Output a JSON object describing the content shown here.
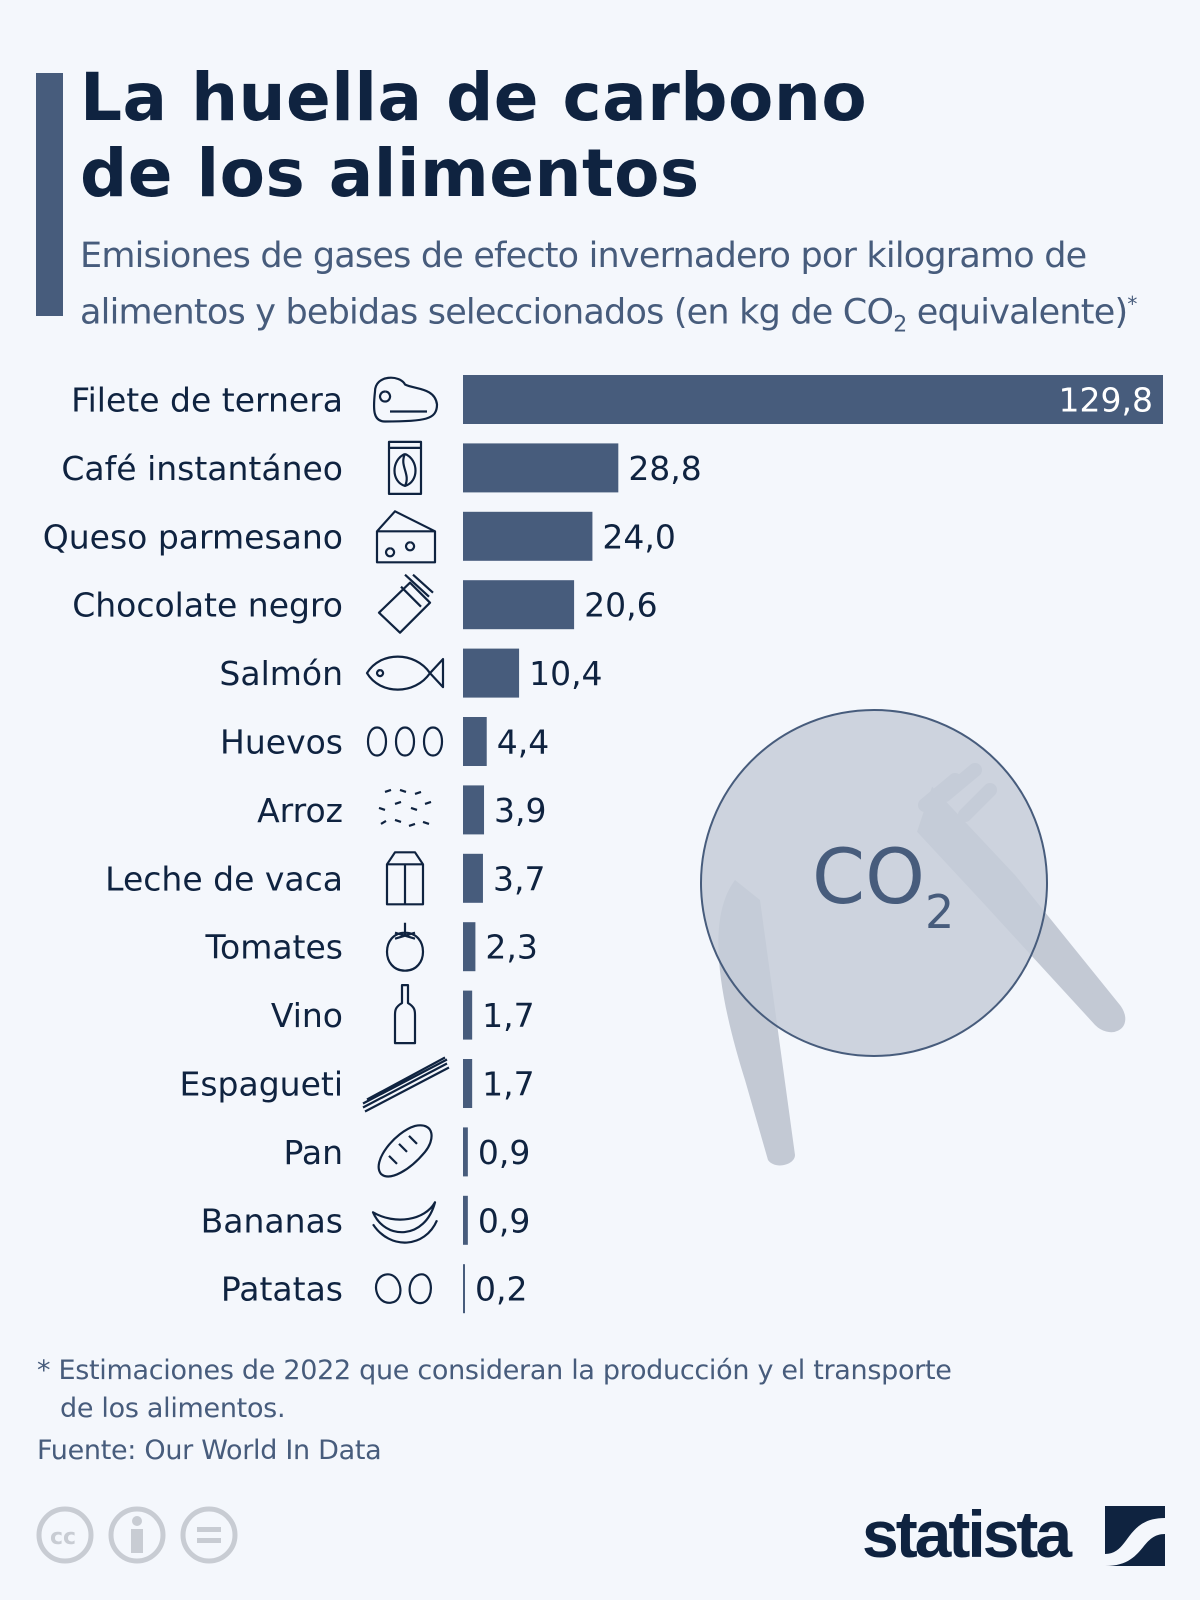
{
  "header": {
    "title_line1": "La huella de carbono",
    "title_line2": "de los alimentos",
    "subtitle_line1": "Emisiones de gases de efecto invernadero por kilogramo de",
    "subtitle_line2_pre": "alimentos y bebidas seleccionados (en kg de CO",
    "subtitle_sub": "2",
    "subtitle_line2_post": " equivalente)",
    "subtitle_asterisk": "*"
  },
  "chart_data": {
    "type": "bar",
    "orientation": "horizontal",
    "unit": "kg de CO2 equivalente",
    "categories": [
      "Filete de ternera",
      "Café instantáneo",
      "Queso parmesano",
      "Chocolate negro",
      "Salmón",
      "Huevos",
      "Arroz",
      "Leche de vaca",
      "Tomates",
      "Vino",
      "Espagueti",
      "Pan",
      "Bananas",
      "Patatas"
    ],
    "values": [
      129.8,
      28.8,
      24.0,
      20.6,
      10.4,
      4.4,
      3.9,
      3.7,
      2.3,
      1.7,
      1.7,
      0.9,
      0.9,
      0.2
    ],
    "labels": [
      "129,8",
      "28,8",
      "24,0",
      "20,6",
      "10,4",
      "4,4",
      "3,9",
      "3,7",
      "2,3",
      "1,7",
      "1,7",
      "0,9",
      "0,9",
      "0,2"
    ],
    "icons": [
      "steak-icon",
      "coffee-bag-icon",
      "cheese-icon",
      "chocolate-icon",
      "fish-icon",
      "eggs-icon",
      "rice-icon",
      "milk-carton-icon",
      "tomato-icon",
      "wine-bottle-icon",
      "spaghetti-icon",
      "bread-icon",
      "bananas-icon",
      "potatoes-icon"
    ],
    "bar_color": "#475c7c",
    "xlim": [
      0,
      129.8
    ]
  },
  "illustration": {
    "co2": "CO",
    "co2_sub": "2"
  },
  "footer": {
    "note_line1": "* Estimaciones de 2022 que consideran la producción y el transporte",
    "note_line2": "de los alimentos.",
    "source": "Fuente: Our World In Data",
    "brand": "statista",
    "license_icons": [
      "cc-icon",
      "attribution-icon",
      "no-derivatives-icon"
    ]
  }
}
